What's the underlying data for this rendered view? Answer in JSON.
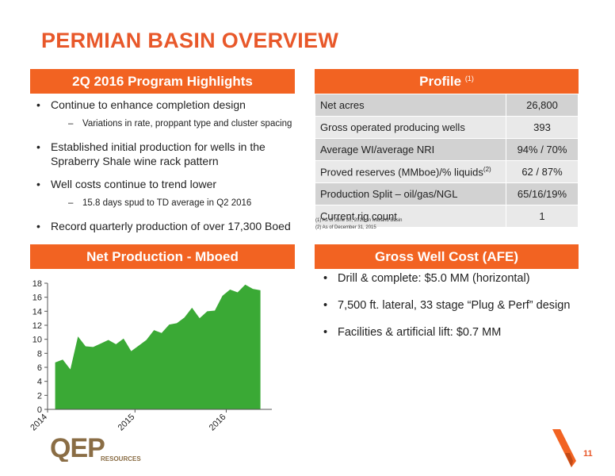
{
  "title": "PERMIAN BASIN OVERVIEW",
  "highlights": {
    "header": "2Q 2016 Program Highlights",
    "items": [
      {
        "text": "Continue to enhance completion design",
        "sub": "Variations in rate,  proppant type and cluster spacing"
      },
      {
        "text": "Established initial production for wells in the Spraberry Shale wine rack pattern",
        "sub": ""
      },
      {
        "text": "Well costs continue to trend lower",
        "sub": "15.8 days spud to TD average in Q2 2016"
      },
      {
        "text": "Record quarterly production of over 17,300 Boed",
        "sub": ""
      }
    ]
  },
  "profile": {
    "header": "Profile",
    "header_note": "(1)",
    "rows": [
      {
        "label": "Net acres",
        "value": "26,800"
      },
      {
        "label": "Gross operated producing wells",
        "value": "393"
      },
      {
        "label": "Average WI/average NRI",
        "value": "94% / 70%"
      },
      {
        "label": "Proved reserves (MMboe)/% liquids",
        "label_note": "(2)",
        "value": "62 / 87%"
      },
      {
        "label": "Production Split – oil/gas/NGL",
        "value": "65/16/19%"
      },
      {
        "label": "Current rig count",
        "value": "1"
      }
    ],
    "footnotes": [
      "(1) As of June 30, 2016, in Midland Basin",
      "(2) As of December 31, 2015"
    ]
  },
  "net_production": {
    "header": "Net Production - Mboed"
  },
  "gross_well_cost": {
    "header": "Gross Well Cost (AFE)",
    "items": [
      "Drill & complete: $5.0 MM (horizontal)",
      "7,500 ft. lateral,  33 stage “Plug & Perf” design",
      "Facilities & artificial lift: $0.7 MM"
    ]
  },
  "chart_data": {
    "type": "area",
    "xlabel": "",
    "ylabel": "",
    "ylim": [
      0,
      18
    ],
    "yticks": [
      0,
      2,
      4,
      6,
      8,
      10,
      12,
      14,
      16,
      18
    ],
    "xtick_labels": [
      "2014",
      "2015",
      "2016"
    ],
    "xtick_index": [
      -1,
      10.5,
      22.5
    ],
    "x_range": [
      -1,
      28.5
    ],
    "values": [
      6.7,
      7.1,
      5.7,
      10.4,
      9.0,
      8.9,
      9.4,
      9.9,
      9.3,
      10.1,
      8.3,
      9.1,
      9.9,
      11.3,
      10.9,
      12.1,
      12.3,
      13.1,
      14.5,
      13.0,
      14.0,
      14.1,
      16.2,
      17.1,
      16.7,
      17.8,
      17.2,
      17.0
    ],
    "fill_color": "#3aa935",
    "grid": false
  },
  "company": {
    "logo": "QEP",
    "logo_sub": "RESOURCES"
  },
  "page_number": "11",
  "colors": {
    "accent": "#f26322",
    "title": "#e8582a",
    "chart_fill": "#3aa935"
  }
}
